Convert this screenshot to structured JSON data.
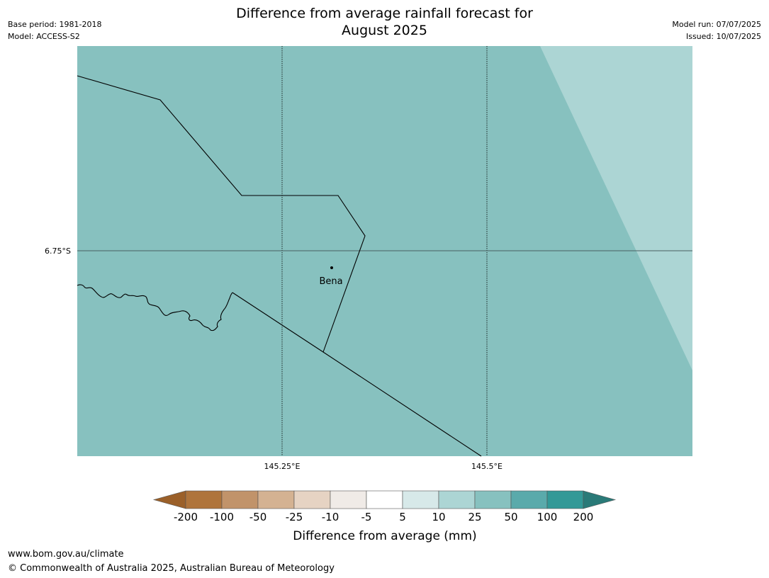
{
  "header": {
    "title_line1": "Difference from average rainfall forecast for",
    "title_line2": "August 2025",
    "base_period": "Base period: 1981-2018",
    "model": "Model: ACCESS-S2",
    "model_run": "Model run: 07/07/2025",
    "issued": "Issued: 10/07/2025"
  },
  "map": {
    "lat_label": "6.75°S",
    "lon_labels": [
      "145.25°E",
      "145.5°E"
    ],
    "place_label": "Bena",
    "fill_colors": {
      "main": "#87c1bf",
      "lighter_region": "#acd5d4"
    }
  },
  "legend": {
    "title": "Difference from average (mm)",
    "tick_labels": [
      "-200",
      "-100",
      "-50",
      "-25",
      "-10",
      "-5",
      "5",
      "10",
      "25",
      "50",
      "100",
      "200"
    ],
    "colors": [
      "#9b6029",
      "#af743b",
      "#c1936a",
      "#d4b292",
      "#e6d3c3",
      "#f0ebe7",
      "#ffffff",
      "#d7e9e9",
      "#acd5d4",
      "#87c1bf",
      "#5aaaab",
      "#339997",
      "#2a7a78"
    ]
  },
  "footer": {
    "url": "www.bom.gov.au/climate",
    "copyright": "© Commonwealth of Australia 2025, Australian Bureau of Meteorology"
  }
}
